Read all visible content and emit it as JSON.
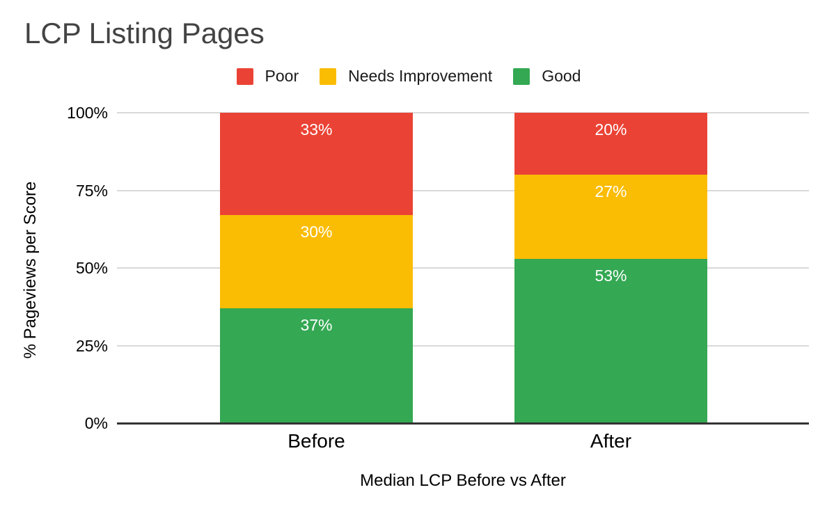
{
  "chart_data": {
    "type": "bar",
    "stacked": true,
    "title": "LCP Listing Pages",
    "xlabel": "Median LCP Before vs After",
    "ylabel": "% Pageviews per Score",
    "categories": [
      "Before",
      "After"
    ],
    "series": [
      {
        "name": "Poor",
        "color": "#ea4335",
        "values": [
          33,
          20
        ]
      },
      {
        "name": "Needs Improvement",
        "color": "#fbbc04",
        "values": [
          30,
          27
        ]
      },
      {
        "name": "Good",
        "color": "#34a853",
        "values": [
          37,
          53
        ]
      }
    ],
    "data_label_suffix": "%",
    "ylim": [
      0,
      100
    ],
    "yticks": [
      0,
      25,
      50,
      75,
      100
    ],
    "ytick_labels": [
      "0%",
      "25%",
      "50%",
      "75%",
      "100%"
    ],
    "legend_position": "top",
    "grid": true
  },
  "colors": {
    "background": "#ffffff",
    "title_text": "#434343",
    "axis_text": "#000000",
    "legend_text": "#1a1a1a",
    "gridline": "#d9d9d9",
    "baseline": "#333333",
    "bar_label_text": "#ffffff",
    "poor": "#ea4335",
    "needs_improvement": "#fbbc04",
    "good": "#34a853"
  }
}
